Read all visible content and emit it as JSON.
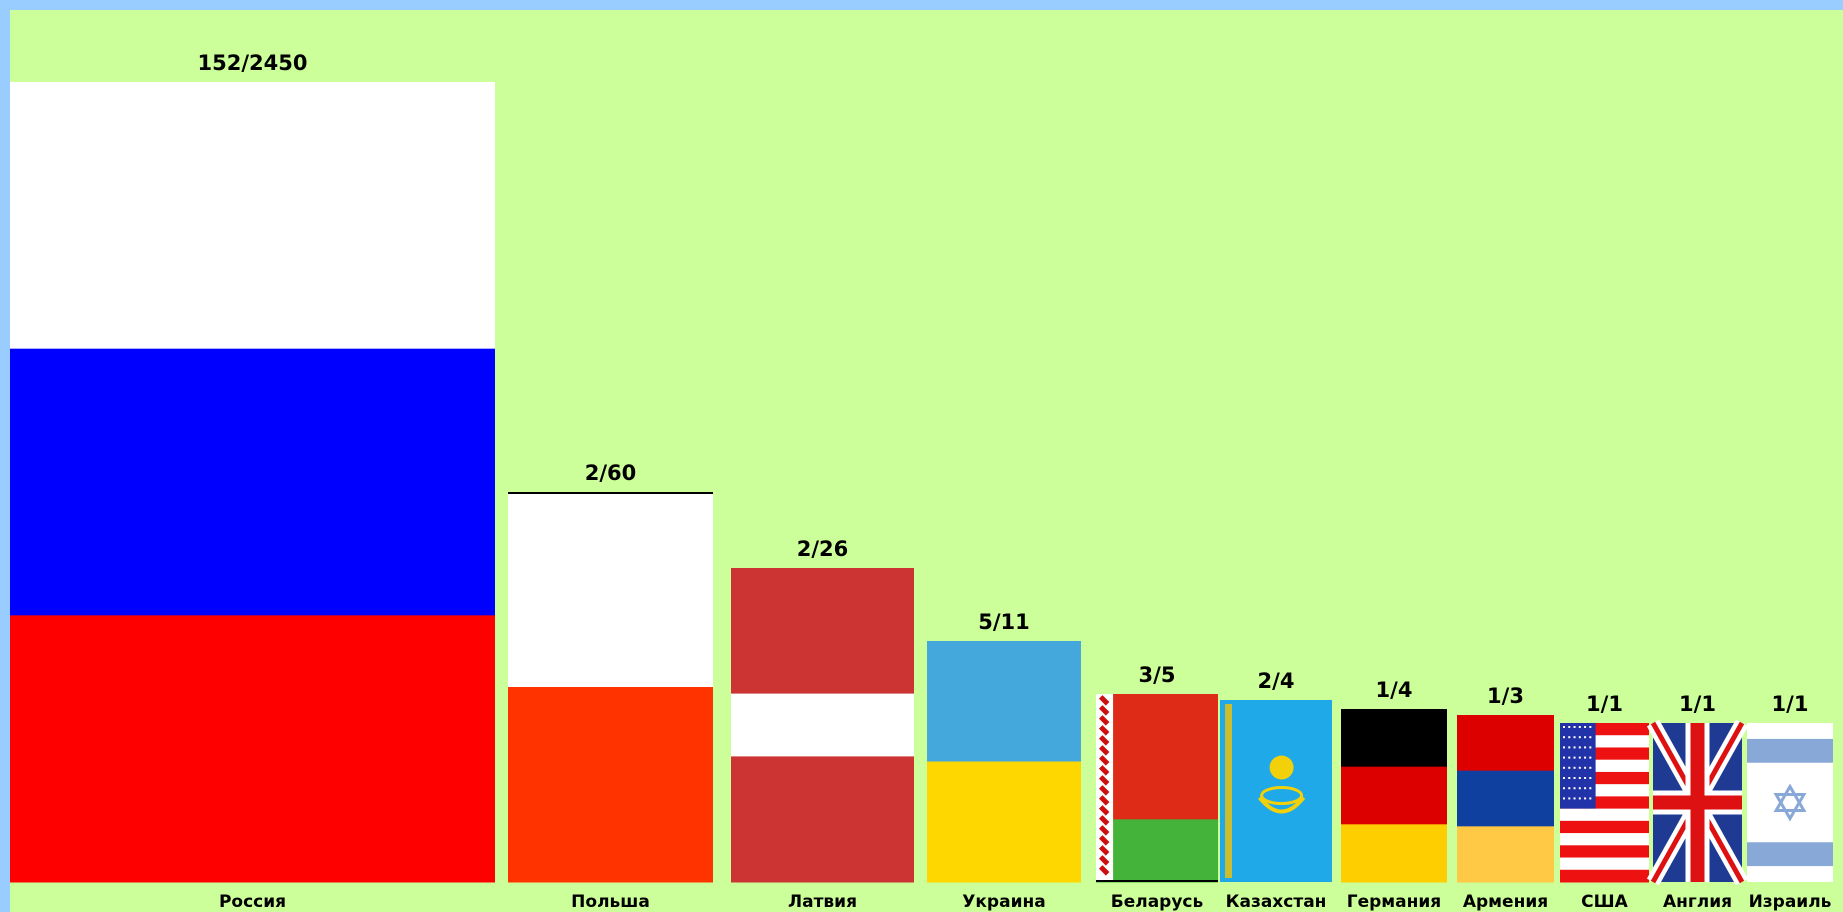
{
  "chart_data": {
    "type": "bar",
    "categories": [
      "Россия",
      "Польша",
      "Латвия",
      "Украина",
      "Беларусь",
      "Казахстан",
      "Германия",
      "Армения",
      "США",
      "Англия",
      "Израиль"
    ],
    "values": [
      2450,
      60,
      26,
      11,
      5,
      4,
      4,
      3,
      1,
      1,
      1
    ],
    "labels": [
      "152/2450",
      "2/60",
      "2/26",
      "5/11",
      "3/5",
      "2/4",
      "1/4",
      "1/3",
      "1/1",
      "1/1",
      "1/1"
    ],
    "bar_style": "national flags",
    "title": "",
    "xlabel": "",
    "ylabel": "",
    "grid": false
  },
  "flags": {
    "Россия": "russia-flag",
    "Польша": "poland-flag",
    "Латвия": "latvia-flag",
    "Украина": "ukraine-flag",
    "Беларусь": "belarus-flag",
    "Казахстан": "kazakhstan-flag",
    "Германия": "germany-flag",
    "Армения": "armenia-flag",
    "США": "usa-flag",
    "Англия": "uk-flag",
    "Израиль": "israel-flag"
  },
  "colors": {
    "outer_frame": "#99ccff",
    "panel_background": "#ccff99"
  }
}
